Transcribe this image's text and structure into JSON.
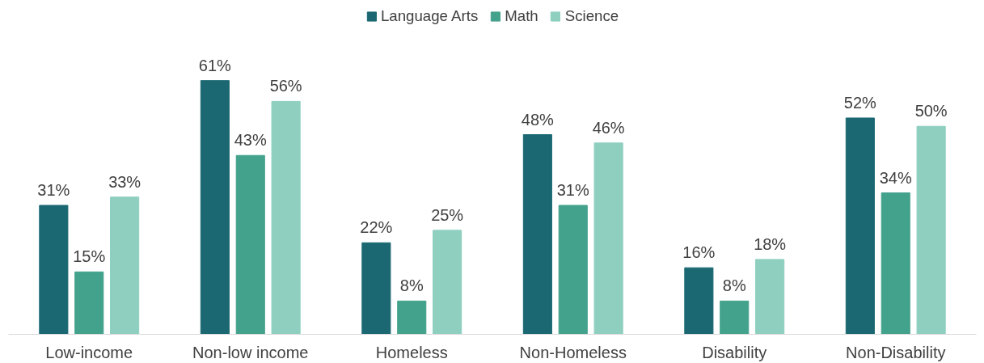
{
  "chart_data": {
    "type": "bar",
    "categories": [
      "Low-income",
      "Non-low income",
      "Homeless",
      "Non-Homeless",
      "Disability",
      "Non-Disability"
    ],
    "series": [
      {
        "name": "Language Arts",
        "color": "#1b6872",
        "values": [
          31,
          61,
          22,
          48,
          16,
          52
        ],
        "value_labels": [
          "31%",
          "61%",
          "22%",
          "48%",
          "16%",
          "52%"
        ]
      },
      {
        "name": "Math",
        "color": "#43a28c",
        "values": [
          15,
          43,
          8,
          31,
          8,
          34
        ],
        "value_labels": [
          "15%",
          "43%",
          "8%",
          "31%",
          "8%",
          "34%"
        ]
      },
      {
        "name": "Science",
        "color": "#8ecfbf",
        "values": [
          33,
          56,
          25,
          46,
          18,
          50
        ],
        "value_labels": [
          "33%",
          "56%",
          "25%",
          "46%",
          "18%",
          "50%"
        ]
      }
    ],
    "legend": "top",
    "grid": false
  }
}
